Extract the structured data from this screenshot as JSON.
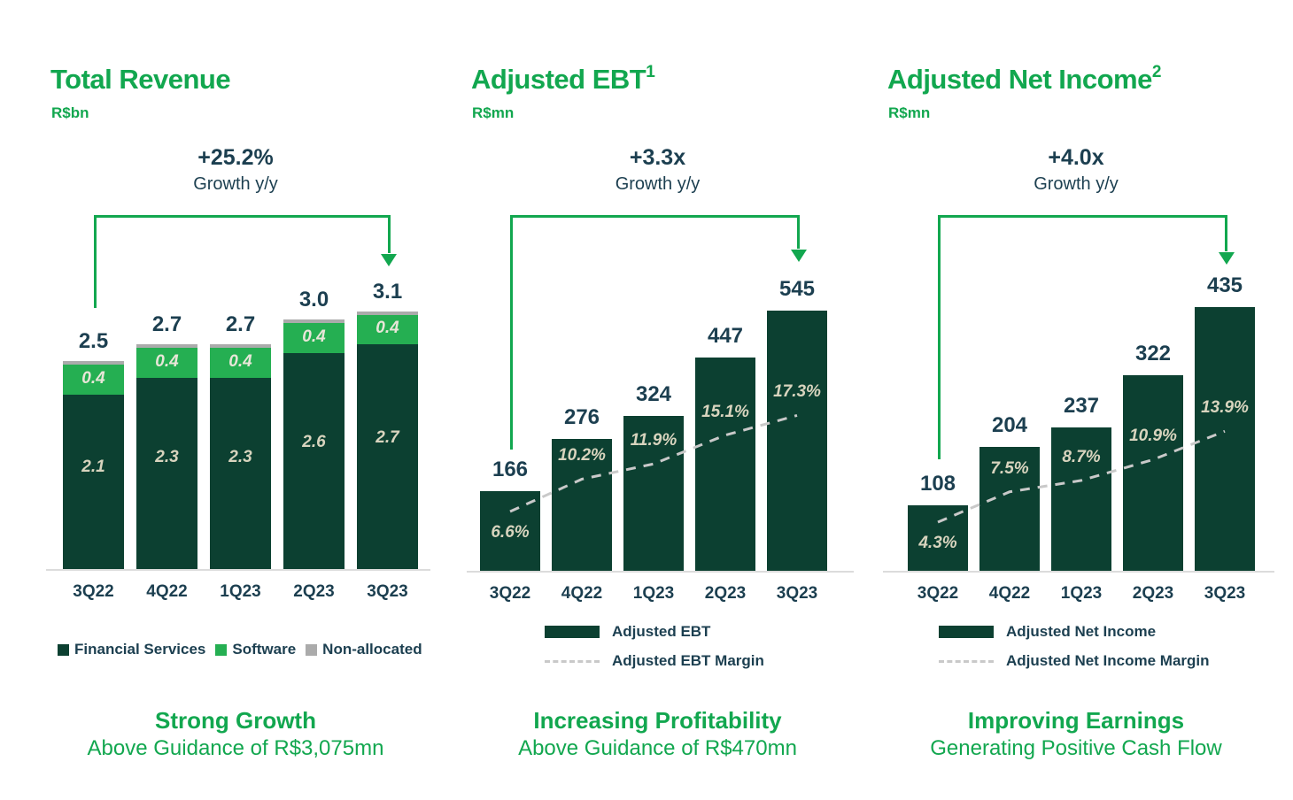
{
  "colors": {
    "accent_green": "#12A74F",
    "bar_dark_green": "#0C4031",
    "software_green": "#25AF52",
    "non_allocated_gray": "#ABABAB",
    "heading_text": "#1C3F50",
    "bar_label_light": "#D8D4BE",
    "margin_line_gray": "#C9C9C9",
    "baseline_gray": "#DCDCDC",
    "background": "#FFFFFF"
  },
  "chart_data": [
    {
      "id": "total_revenue",
      "type": "stacked_bar",
      "title": "Total Revenue",
      "superscript": "",
      "unit_label": "R$bn",
      "growth_annotation": {
        "value": "+25.2%",
        "label": "Growth y/y"
      },
      "categories": [
        "3Q22",
        "4Q22",
        "1Q23",
        "2Q23",
        "3Q23"
      ],
      "series": [
        {
          "name": "Financial Services",
          "color_key": "bar_dark_green",
          "values": [
            2.1,
            2.3,
            2.3,
            2.6,
            2.7
          ]
        },
        {
          "name": "Software",
          "color_key": "software_green",
          "values": [
            0.4,
            0.4,
            0.4,
            0.4,
            0.4
          ]
        },
        {
          "name": "Non-allocated",
          "color_key": "non_allocated_gray",
          "values": [
            0,
            0,
            0,
            0,
            0
          ]
        }
      ],
      "totals": [
        "2.5",
        "2.7",
        "2.7",
        "3.0",
        "3.1"
      ],
      "ylim": [
        0,
        3.5
      ],
      "grid": false,
      "legend_position": "bottom",
      "caption": {
        "title": "Strong Growth",
        "subtitle": "Above Guidance of R$3,075mn"
      }
    },
    {
      "id": "adjusted_ebt",
      "type": "bar_with_line",
      "title": "Adjusted EBT",
      "superscript": "1",
      "unit_label": "R$mn",
      "growth_annotation": {
        "value": "+3.3x",
        "label": "Growth y/y"
      },
      "categories": [
        "3Q22",
        "4Q22",
        "1Q23",
        "2Q23",
        "3Q23"
      ],
      "values": [
        166,
        276,
        324,
        447,
        545
      ],
      "margin_pct": [
        6.6,
        10.2,
        11.9,
        15.1,
        17.3
      ],
      "margin_labels": [
        "6.6%",
        "10.2%",
        "11.9%",
        "15.1%",
        "17.3%"
      ],
      "ylim": [
        0,
        600
      ],
      "grid": false,
      "legend": [
        "Adjusted EBT",
        "Adjusted EBT Margin"
      ],
      "legend_position": "bottom",
      "caption": {
        "title": "Increasing Profitability",
        "subtitle": "Above Guidance of R$470mn"
      }
    },
    {
      "id": "adjusted_net_income",
      "type": "bar_with_line",
      "title": "Adjusted Net Income",
      "superscript": "2",
      "unit_label": "R$mn",
      "growth_annotation": {
        "value": "+4.0x",
        "label": "Growth y/y"
      },
      "categories": [
        "3Q22",
        "4Q22",
        "1Q23",
        "2Q23",
        "3Q23"
      ],
      "values": [
        108,
        204,
        237,
        322,
        435
      ],
      "margin_pct": [
        4.3,
        7.5,
        8.7,
        10.9,
        13.9
      ],
      "margin_labels": [
        "4.3%",
        "7.5%",
        "8.7%",
        "10.9%",
        "13.9%"
      ],
      "ylim": [
        0,
        480
      ],
      "grid": false,
      "legend": [
        "Adjusted Net Income",
        "Adjusted Net Income Margin"
      ],
      "legend_position": "bottom",
      "caption": {
        "title": "Improving Earnings",
        "subtitle": "Generating Positive Cash Flow"
      }
    }
  ]
}
